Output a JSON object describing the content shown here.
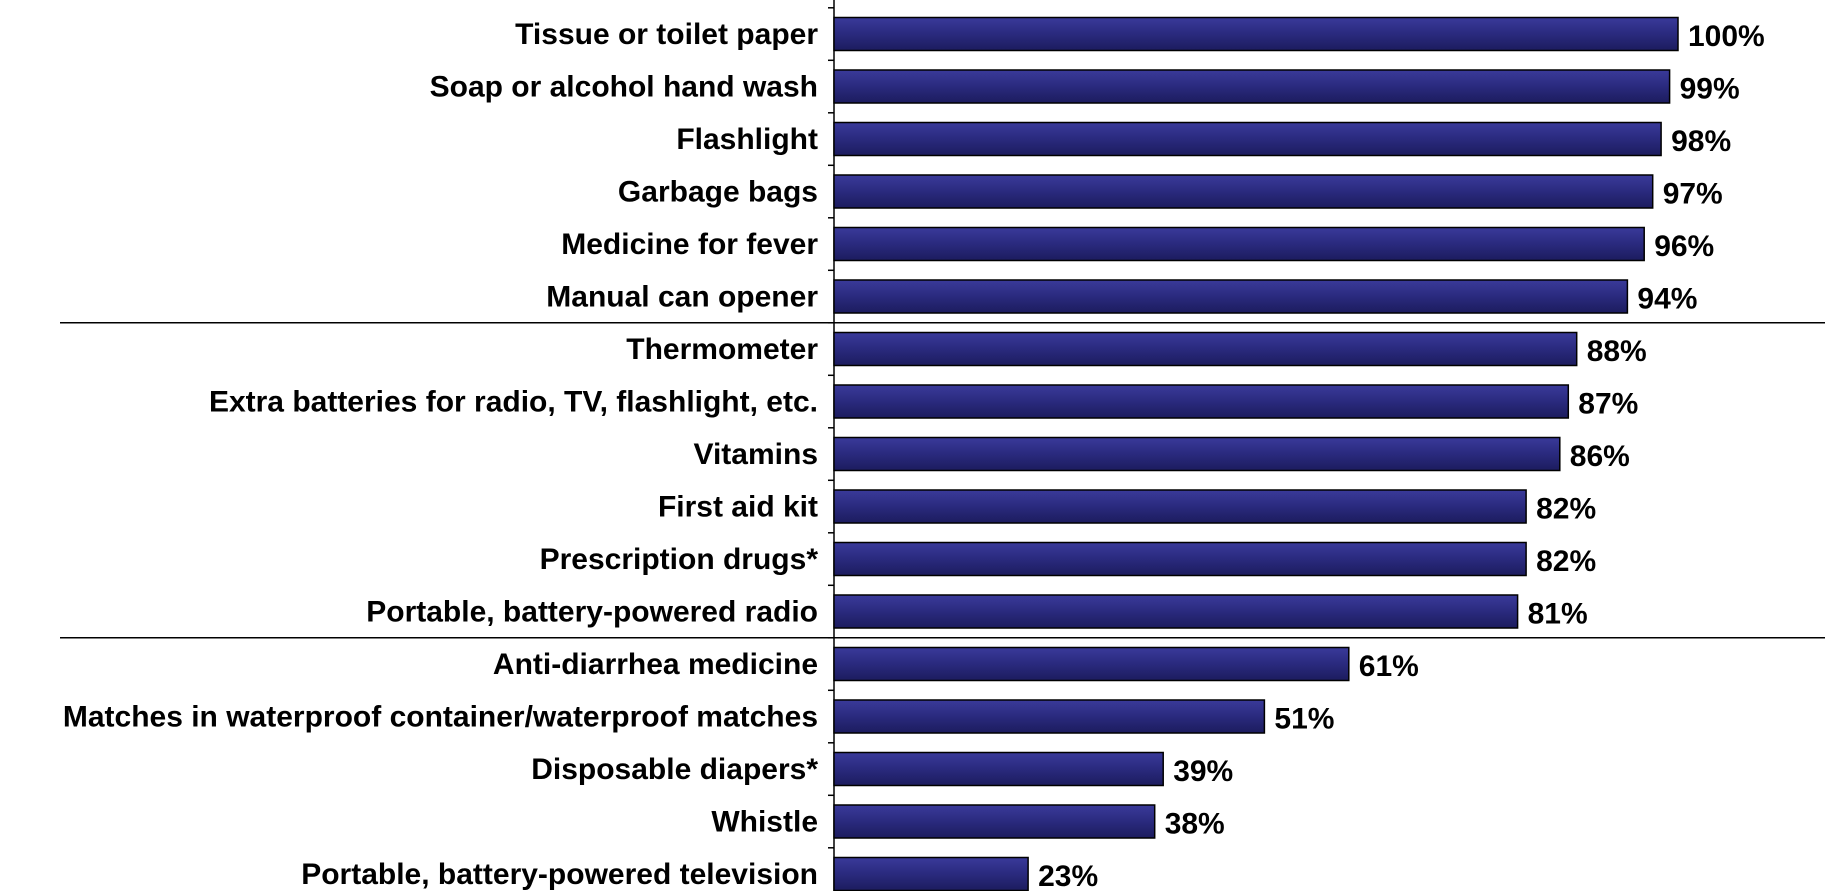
{
  "chart_data": {
    "type": "bar",
    "orientation": "horizontal",
    "title": "",
    "xlabel": "",
    "ylabel": "",
    "xlim": [
      0,
      100
    ],
    "grid": false,
    "legend": "none",
    "value_suffix": "%",
    "bar_color": "#2a2a7e",
    "bar_edge_color": "#000000",
    "group_separators_after_index": [
      5,
      11
    ],
    "categories": [
      "Tissue or toilet paper",
      "Soap or alcohol hand wash",
      "Flashlight",
      "Garbage bags",
      "Medicine for fever",
      "Manual can opener",
      "Thermometer",
      "Extra batteries for radio, TV, flashlight, etc.",
      "Vitamins",
      "First aid kit",
      "Prescription drugs*",
      "Portable, battery-powered radio",
      "Anti-diarrhea medicine",
      "Matches in waterproof container/waterproof matches",
      "Disposable diapers*",
      "Whistle",
      "Portable, battery-powered television"
    ],
    "values": [
      100,
      99,
      98,
      97,
      96,
      94,
      88,
      87,
      86,
      82,
      82,
      81,
      61,
      51,
      39,
      38,
      23
    ],
    "value_labels": [
      "100%",
      "99%",
      "98%",
      "97%",
      "96%",
      "94%",
      "88%",
      "87%",
      "86%",
      "82%",
      "82%",
      "81%",
      "61%",
      "51%",
      "39%",
      "38%",
      "23%"
    ]
  }
}
